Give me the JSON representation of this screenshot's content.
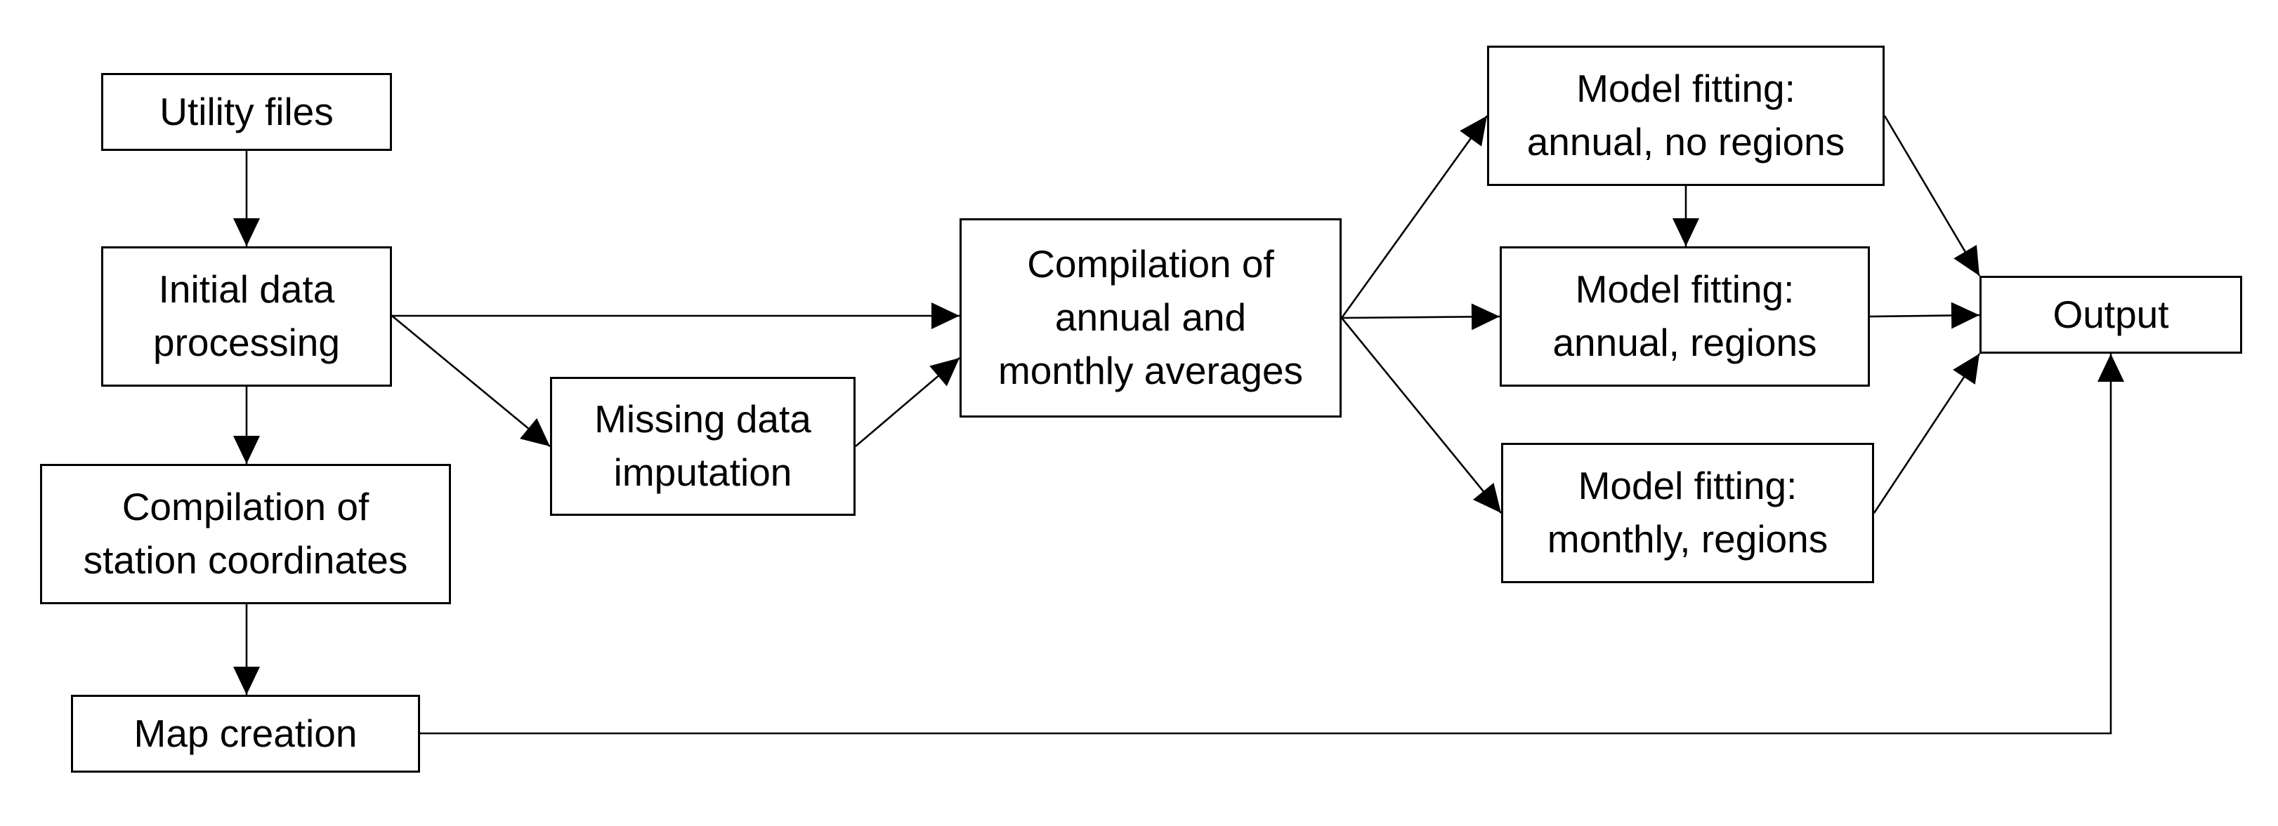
{
  "diagram": {
    "colors": {
      "stroke": "#000000",
      "box_fill": "#ffffff",
      "text": "#000000",
      "background": "#ffffff"
    },
    "nodes": {
      "utility_files": [
        "Utility files"
      ],
      "initial_processing": [
        "Initial data",
        "processing"
      ],
      "station_coordinates": [
        "Compilation of",
        "station coordinates"
      ],
      "map_creation": [
        "Map creation"
      ],
      "missing_imputation": [
        "Missing data",
        "imputation"
      ],
      "compilation_averages": [
        "Compilation of",
        "annual and",
        "monthly averages"
      ],
      "model_annual_no_regions": [
        "Model fitting:",
        "annual, no regions"
      ],
      "model_annual_regions": [
        "Model fitting:",
        "annual, regions"
      ],
      "model_monthly_regions": [
        "Model fitting:",
        "monthly, regions"
      ],
      "output": [
        "Output"
      ]
    },
    "edges": [
      [
        "utility_files",
        "initial_processing"
      ],
      [
        "initial_processing",
        "station_coordinates"
      ],
      [
        "station_coordinates",
        "map_creation"
      ],
      [
        "initial_processing",
        "compilation_averages"
      ],
      [
        "initial_processing",
        "missing_imputation"
      ],
      [
        "missing_imputation",
        "compilation_averages"
      ],
      [
        "compilation_averages",
        "model_annual_no_regions"
      ],
      [
        "compilation_averages",
        "model_annual_regions"
      ],
      [
        "compilation_averages",
        "model_monthly_regions"
      ],
      [
        "model_annual_no_regions",
        "model_annual_regions"
      ],
      [
        "model_annual_no_regions",
        "output"
      ],
      [
        "model_annual_regions",
        "output"
      ],
      [
        "model_monthly_regions",
        "output"
      ],
      [
        "map_creation",
        "output"
      ]
    ]
  }
}
